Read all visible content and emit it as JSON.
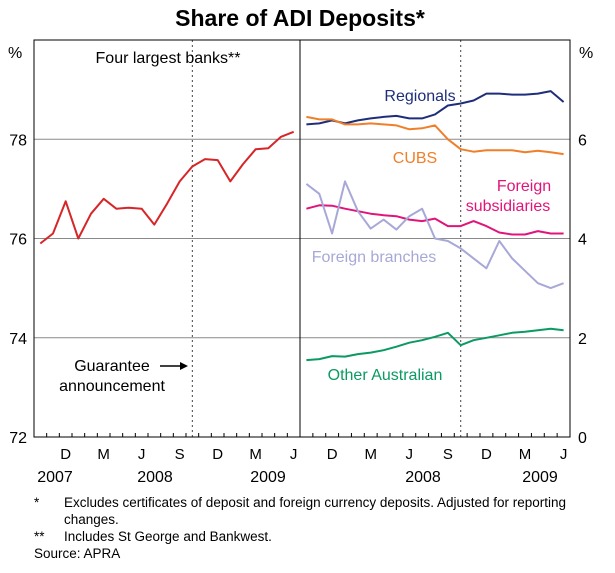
{
  "chart_data": {
    "title": "Share of ADI Deposits*",
    "type": "line",
    "x_tick_labels": [
      "D",
      "M",
      "J",
      "S",
      "D",
      "M",
      "J"
    ],
    "year_labels": [
      "2007",
      "2008",
      "2009"
    ],
    "panels": [
      {
        "name": "left",
        "y_unit": "%",
        "ylim": [
          72,
          80
        ],
        "y_ticks": [
          72,
          74,
          76,
          78
        ],
        "x_start": "2007-10",
        "x_end": "2009-06",
        "event_line": "2008-10",
        "annotations": [
          "Four largest banks**",
          "Guarantee",
          "announcement"
        ],
        "series": [
          {
            "name": "Four largest banks**",
            "color": "#d62628",
            "points": [
              [
                "2007-10",
                75.9
              ],
              [
                "2007-11",
                76.1
              ],
              [
                "2007-12",
                76.75
              ],
              [
                "2008-01",
                76.0
              ],
              [
                "2008-02",
                76.5
              ],
              [
                "2008-03",
                76.8
              ],
              [
                "2008-04",
                76.6
              ],
              [
                "2008-05",
                76.62
              ],
              [
                "2008-06",
                76.6
              ],
              [
                "2008-07",
                76.28
              ],
              [
                "2008-08",
                76.7
              ],
              [
                "2008-09",
                77.15
              ],
              [
                "2008-10",
                77.45
              ],
              [
                "2008-11",
                77.6
              ],
              [
                "2008-12",
                77.58
              ],
              [
                "2009-01",
                77.15
              ],
              [
                "2009-02",
                77.5
              ],
              [
                "2009-03",
                77.8
              ],
              [
                "2009-04",
                77.82
              ],
              [
                "2009-05",
                78.05
              ],
              [
                "2009-06",
                78.15
              ]
            ]
          }
        ]
      },
      {
        "name": "right",
        "y_unit": "%",
        "ylim": [
          0,
          8
        ],
        "y_ticks": [
          0,
          2,
          4,
          6
        ],
        "x_start": "2007-10",
        "x_end": "2009-06",
        "event_line": "2008-10",
        "series": [
          {
            "name": "Regionals",
            "color": "#1f2e7a",
            "points": [
              [
                "2007-10",
                6.3
              ],
              [
                "2007-11",
                6.32
              ],
              [
                "2007-12",
                6.38
              ],
              [
                "2008-01",
                6.32
              ],
              [
                "2008-02",
                6.38
              ],
              [
                "2008-03",
                6.42
              ],
              [
                "2008-04",
                6.45
              ],
              [
                "2008-05",
                6.47
              ],
              [
                "2008-06",
                6.42
              ],
              [
                "2008-07",
                6.42
              ],
              [
                "2008-08",
                6.5
              ],
              [
                "2008-09",
                6.68
              ],
              [
                "2008-10",
                6.72
              ],
              [
                "2008-11",
                6.78
              ],
              [
                "2008-12",
                6.92
              ],
              [
                "2009-01",
                6.92
              ],
              [
                "2009-02",
                6.9
              ],
              [
                "2009-03",
                6.9
              ],
              [
                "2009-04",
                6.92
              ],
              [
                "2009-05",
                6.97
              ],
              [
                "2009-06",
                6.75
              ]
            ]
          },
          {
            "name": "CUBS",
            "color": "#f07f2a",
            "points": [
              [
                "2007-10",
                6.45
              ],
              [
                "2007-11",
                6.4
              ],
              [
                "2007-12",
                6.4
              ],
              [
                "2008-01",
                6.3
              ],
              [
                "2008-02",
                6.3
              ],
              [
                "2008-03",
                6.32
              ],
              [
                "2008-04",
                6.3
              ],
              [
                "2008-05",
                6.28
              ],
              [
                "2008-06",
                6.2
              ],
              [
                "2008-07",
                6.22
              ],
              [
                "2008-08",
                6.28
              ],
              [
                "2008-09",
                6.0
              ],
              [
                "2008-10",
                5.8
              ],
              [
                "2008-11",
                5.75
              ],
              [
                "2008-12",
                5.78
              ],
              [
                "2009-01",
                5.78
              ],
              [
                "2009-02",
                5.78
              ],
              [
                "2009-03",
                5.74
              ],
              [
                "2009-04",
                5.77
              ],
              [
                "2009-05",
                5.74
              ],
              [
                "2009-06",
                5.7
              ]
            ]
          },
          {
            "name": "Foreign subsidiaries",
            "color": "#e0147a",
            "points": [
              [
                "2007-10",
                4.6
              ],
              [
                "2007-11",
                4.67
              ],
              [
                "2007-12",
                4.66
              ],
              [
                "2008-01",
                4.6
              ],
              [
                "2008-02",
                4.55
              ],
              [
                "2008-03",
                4.5
              ],
              [
                "2008-04",
                4.47
              ],
              [
                "2008-05",
                4.45
              ],
              [
                "2008-06",
                4.38
              ],
              [
                "2008-07",
                4.35
              ],
              [
                "2008-08",
                4.4
              ],
              [
                "2008-09",
                4.25
              ],
              [
                "2008-10",
                4.25
              ],
              [
                "2008-11",
                4.35
              ],
              [
                "2008-12",
                4.25
              ],
              [
                "2009-01",
                4.12
              ],
              [
                "2009-02",
                4.08
              ],
              [
                "2009-03",
                4.08
              ],
              [
                "2009-04",
                4.15
              ],
              [
                "2009-05",
                4.1
              ],
              [
                "2009-06",
                4.1
              ]
            ]
          },
          {
            "name": "Foreign branches",
            "color": "#a8a8d8",
            "points": [
              [
                "2007-10",
                5.1
              ],
              [
                "2007-11",
                4.9
              ],
              [
                "2007-12",
                4.1
              ],
              [
                "2008-01",
                5.15
              ],
              [
                "2008-02",
                4.55
              ],
              [
                "2008-03",
                4.2
              ],
              [
                "2008-04",
                4.38
              ],
              [
                "2008-05",
                4.18
              ],
              [
                "2008-06",
                4.45
              ],
              [
                "2008-07",
                4.6
              ],
              [
                "2008-08",
                4.0
              ],
              [
                "2008-09",
                3.95
              ],
              [
                "2008-10",
                3.8
              ],
              [
                "2008-11",
                3.6
              ],
              [
                "2008-12",
                3.4
              ],
              [
                "2009-01",
                3.95
              ],
              [
                "2009-02",
                3.6
              ],
              [
                "2009-03",
                3.35
              ],
              [
                "2009-04",
                3.1
              ],
              [
                "2009-05",
                3.0
              ],
              [
                "2009-06",
                3.1
              ]
            ]
          },
          {
            "name": "Other Australian",
            "color": "#0a9a62",
            "points": [
              [
                "2007-10",
                1.55
              ],
              [
                "2007-11",
                1.57
              ],
              [
                "2007-12",
                1.63
              ],
              [
                "2008-01",
                1.62
              ],
              [
                "2008-02",
                1.67
              ],
              [
                "2008-03",
                1.7
              ],
              [
                "2008-04",
                1.75
              ],
              [
                "2008-05",
                1.82
              ],
              [
                "2008-06",
                1.9
              ],
              [
                "2008-07",
                1.95
              ],
              [
                "2008-08",
                2.02
              ],
              [
                "2008-09",
                2.1
              ],
              [
                "2008-10",
                1.85
              ],
              [
                "2008-11",
                1.95
              ],
              [
                "2008-12",
                2.0
              ],
              [
                "2009-01",
                2.05
              ],
              [
                "2009-02",
                2.1
              ],
              [
                "2009-03",
                2.12
              ],
              [
                "2009-04",
                2.15
              ],
              [
                "2009-05",
                2.18
              ],
              [
                "2009-06",
                2.15
              ]
            ]
          }
        ]
      }
    ]
  },
  "notes": [
    {
      "mark": "*",
      "text": "Excludes certificates of deposit and foreign currency deposits. Adjusted for reporting changes."
    },
    {
      "mark": "**",
      "text": "Includes St George and Bankwest."
    }
  ],
  "source": "Source: APRA"
}
